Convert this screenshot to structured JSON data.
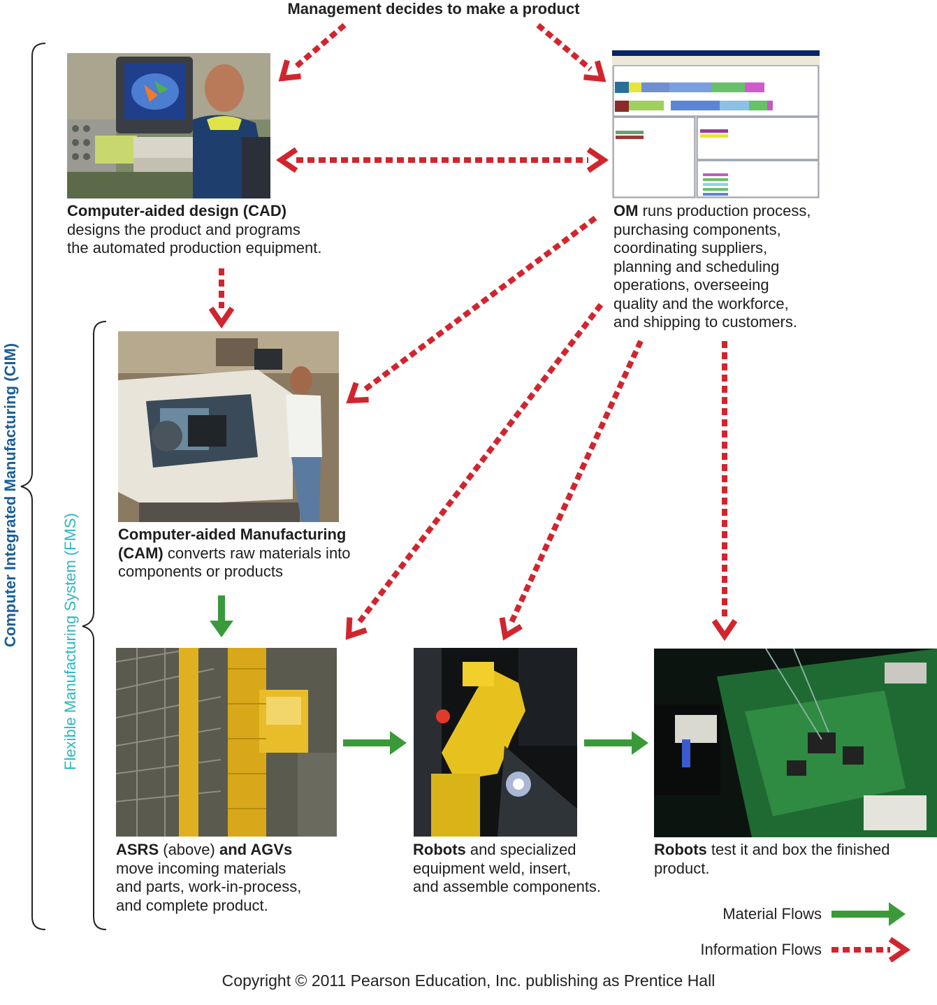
{
  "title": "Management decides to make a product",
  "side_labels": {
    "cim": "Computer Integrated Manufacturing (CIM)",
    "fms": "Flexible Manufacturing System (FMS)"
  },
  "nodes": {
    "cad": {
      "bold": "Computer-aided design (CAD)",
      "lines": [
        "designs the product and programs",
        "the automated production equipment."
      ]
    },
    "om": {
      "bold": "OM",
      "rest": " runs production process,",
      "lines": [
        "purchasing components,",
        "coordinating suppliers,",
        "planning and scheduling",
        "operations, overseeing",
        "quality and the workforce,",
        "and shipping to customers."
      ]
    },
    "cam": {
      "bold1": "Computer-aided Manufacturing",
      "bold2": "(CAM)",
      "rest": " converts raw materials into",
      "line3": "components or products"
    },
    "asrs": {
      "bold1": "ASRS",
      "mid": " (above) ",
      "bold2": "and AGVs",
      "lines": [
        "move incoming materials",
        "and parts, work-in-process,",
        "and complete product."
      ]
    },
    "robots1": {
      "bold": "Robots",
      "rest": " and specialized",
      "lines": [
        "equipment weld, insert,",
        "and assemble components."
      ]
    },
    "robots2": {
      "bold": "Robots",
      "rest": " test it and box the finished",
      "lines": [
        "product."
      ]
    }
  },
  "legend": {
    "material": "Material Flows",
    "information": "Information Flows"
  },
  "colors": {
    "material_flow": "#3a9a3a",
    "information_flow": "#d1252e",
    "cim_label": "#1a5e96",
    "fms_label": "#2bb7c0"
  },
  "copyright": "Copyright © 2011 Pearson Education, Inc. publishing as Prentice Hall"
}
